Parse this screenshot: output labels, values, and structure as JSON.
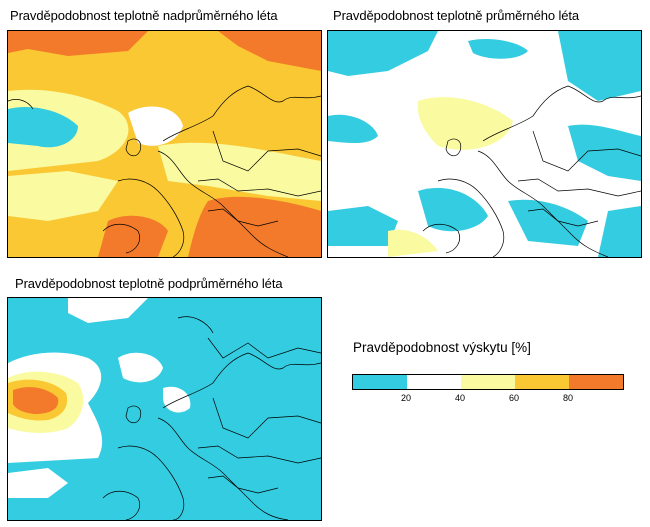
{
  "panels": [
    {
      "id": "above",
      "title": "Pravděpodobnost teplotně nadprůměrného léta"
    },
    {
      "id": "normal",
      "title": "Pravděpodobnost teplotně průměrného léta"
    },
    {
      "id": "below",
      "title": "Pravděpodobnost teplotně podprůměrného léta"
    }
  ],
  "legend": {
    "title": "Pravděpodobnost výskytu [%]",
    "ticks": [
      "20",
      "40",
      "60",
      "80"
    ],
    "colors": [
      "#33cce0",
      "#ffffff",
      "#fafaa0",
      "#fac833",
      "#f27a2a"
    ]
  },
  "palette": {
    "cyan": "#33cce0",
    "white": "#ffffff",
    "yellow": "#fafaa0",
    "gold": "#fac833",
    "orange": "#f27a2a",
    "land_outline": "#000000"
  }
}
